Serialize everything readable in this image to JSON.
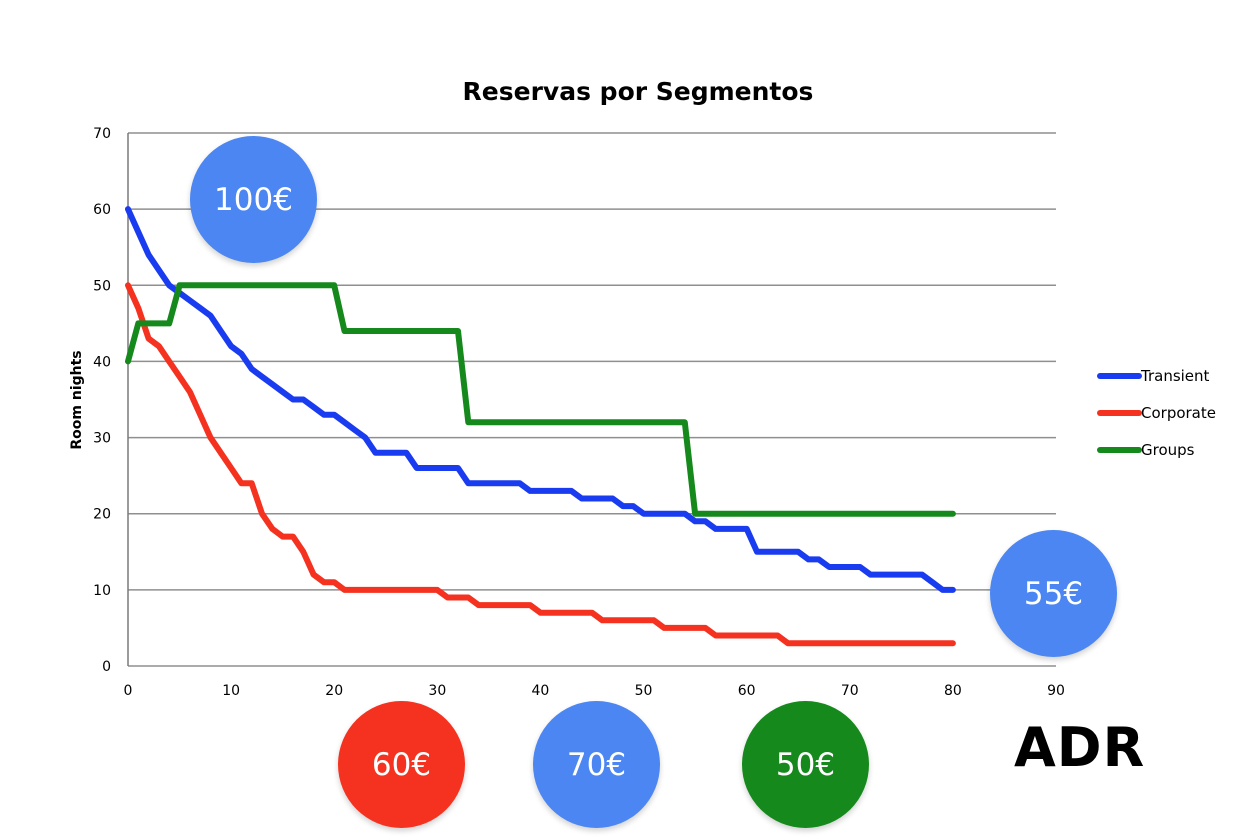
{
  "chart_data": {
    "type": "line",
    "title": "Reservas por Segmentos",
    "xlabel": "",
    "ylabel": "Room nights",
    "xlim": [
      0,
      90
    ],
    "ylim": [
      0,
      70
    ],
    "xticks": [
      0,
      10,
      20,
      30,
      40,
      50,
      60,
      70,
      80,
      90
    ],
    "yticks": [
      0,
      10,
      20,
      30,
      40,
      50,
      60,
      70
    ],
    "grid": "horizontal",
    "legend_position": "right",
    "series": [
      {
        "name": "Transient",
        "color": "#1a3cf0",
        "points": [
          [
            0,
            60
          ],
          [
            1,
            57
          ],
          [
            2,
            54
          ],
          [
            3,
            52
          ],
          [
            4,
            50
          ],
          [
            5,
            49
          ],
          [
            6,
            48
          ],
          [
            7,
            47
          ],
          [
            8,
            46
          ],
          [
            9,
            44
          ],
          [
            10,
            42
          ],
          [
            11,
            41
          ],
          [
            12,
            39
          ],
          [
            13,
            38
          ],
          [
            14,
            37
          ],
          [
            15,
            36
          ],
          [
            16,
            35
          ],
          [
            17,
            35
          ],
          [
            18,
            34
          ],
          [
            19,
            33
          ],
          [
            20,
            33
          ],
          [
            21,
            32
          ],
          [
            22,
            31
          ],
          [
            23,
            30
          ],
          [
            24,
            28
          ],
          [
            25,
            28
          ],
          [
            26,
            28
          ],
          [
            27,
            28
          ],
          [
            28,
            26
          ],
          [
            29,
            26
          ],
          [
            30,
            26
          ],
          [
            31,
            26
          ],
          [
            32,
            26
          ],
          [
            33,
            24
          ],
          [
            34,
            24
          ],
          [
            35,
            24
          ],
          [
            36,
            24
          ],
          [
            37,
            24
          ],
          [
            38,
            24
          ],
          [
            39,
            23
          ],
          [
            40,
            23
          ],
          [
            41,
            23
          ],
          [
            42,
            23
          ],
          [
            43,
            23
          ],
          [
            44,
            22
          ],
          [
            45,
            22
          ],
          [
            46,
            22
          ],
          [
            47,
            22
          ],
          [
            48,
            21
          ],
          [
            49,
            21
          ],
          [
            50,
            20
          ],
          [
            51,
            20
          ],
          [
            52,
            20
          ],
          [
            53,
            20
          ],
          [
            54,
            20
          ],
          [
            55,
            19
          ],
          [
            56,
            19
          ],
          [
            57,
            18
          ],
          [
            58,
            18
          ],
          [
            59,
            18
          ],
          [
            60,
            18
          ],
          [
            61,
            15
          ],
          [
            62,
            15
          ],
          [
            63,
            15
          ],
          [
            64,
            15
          ],
          [
            65,
            15
          ],
          [
            66,
            14
          ],
          [
            67,
            14
          ],
          [
            68,
            13
          ],
          [
            69,
            13
          ],
          [
            70,
            13
          ],
          [
            71,
            13
          ],
          [
            72,
            12
          ],
          [
            73,
            12
          ],
          [
            74,
            12
          ],
          [
            75,
            12
          ],
          [
            76,
            12
          ],
          [
            77,
            12
          ],
          [
            78,
            11
          ],
          [
            79,
            10
          ],
          [
            80,
            10
          ]
        ]
      },
      {
        "name": "Corporate",
        "color": "#f5321f",
        "points": [
          [
            0,
            50
          ],
          [
            1,
            47
          ],
          [
            2,
            43
          ],
          [
            3,
            42
          ],
          [
            4,
            40
          ],
          [
            5,
            38
          ],
          [
            6,
            36
          ],
          [
            7,
            33
          ],
          [
            8,
            30
          ],
          [
            9,
            28
          ],
          [
            10,
            26
          ],
          [
            11,
            24
          ],
          [
            12,
            24
          ],
          [
            13,
            20
          ],
          [
            14,
            18
          ],
          [
            15,
            17
          ],
          [
            16,
            17
          ],
          [
            17,
            15
          ],
          [
            18,
            12
          ],
          [
            19,
            11
          ],
          [
            20,
            11
          ],
          [
            21,
            10
          ],
          [
            22,
            10
          ],
          [
            23,
            10
          ],
          [
            24,
            10
          ],
          [
            25,
            10
          ],
          [
            26,
            10
          ],
          [
            27,
            10
          ],
          [
            28,
            10
          ],
          [
            29,
            10
          ],
          [
            30,
            10
          ],
          [
            31,
            9
          ],
          [
            32,
            9
          ],
          [
            33,
            9
          ],
          [
            34,
            8
          ],
          [
            35,
            8
          ],
          [
            36,
            8
          ],
          [
            37,
            8
          ],
          [
            38,
            8
          ],
          [
            39,
            8
          ],
          [
            40,
            7
          ],
          [
            41,
            7
          ],
          [
            42,
            7
          ],
          [
            43,
            7
          ],
          [
            44,
            7
          ],
          [
            45,
            7
          ],
          [
            46,
            6
          ],
          [
            47,
            6
          ],
          [
            48,
            6
          ],
          [
            49,
            6
          ],
          [
            50,
            6
          ],
          [
            51,
            6
          ],
          [
            52,
            5
          ],
          [
            53,
            5
          ],
          [
            54,
            5
          ],
          [
            55,
            5
          ],
          [
            56,
            5
          ],
          [
            57,
            4
          ],
          [
            58,
            4
          ],
          [
            59,
            4
          ],
          [
            60,
            4
          ],
          [
            61,
            4
          ],
          [
            62,
            4
          ],
          [
            63,
            4
          ],
          [
            64,
            3
          ],
          [
            65,
            3
          ],
          [
            66,
            3
          ],
          [
            67,
            3
          ],
          [
            68,
            3
          ],
          [
            69,
            3
          ],
          [
            70,
            3
          ],
          [
            71,
            3
          ],
          [
            72,
            3
          ],
          [
            73,
            3
          ],
          [
            74,
            3
          ],
          [
            75,
            3
          ],
          [
            76,
            3
          ],
          [
            77,
            3
          ],
          [
            78,
            3
          ],
          [
            79,
            3
          ],
          [
            80,
            3
          ]
        ]
      },
      {
        "name": "Groups",
        "color": "#16891c",
        "points": [
          [
            0,
            40
          ],
          [
            1,
            45
          ],
          [
            2,
            45
          ],
          [
            3,
            45
          ],
          [
            4,
            45
          ],
          [
            5,
            50
          ],
          [
            6,
            50
          ],
          [
            10,
            50
          ],
          [
            15,
            50
          ],
          [
            19,
            50
          ],
          [
            20,
            50
          ],
          [
            21,
            44
          ],
          [
            22,
            44
          ],
          [
            26,
            44
          ],
          [
            30,
            44
          ],
          [
            32,
            44
          ],
          [
            33,
            32
          ],
          [
            34,
            32
          ],
          [
            40,
            32
          ],
          [
            45,
            32
          ],
          [
            50,
            32
          ],
          [
            54,
            32
          ],
          [
            55,
            20
          ],
          [
            56,
            20
          ],
          [
            60,
            20
          ],
          [
            65,
            20
          ],
          [
            70,
            20
          ],
          [
            75,
            20
          ],
          [
            80,
            20
          ]
        ]
      }
    ]
  },
  "badges": [
    {
      "label": "100€",
      "color": "#4b86f2"
    },
    {
      "label": "55€",
      "color": "#4b86f2"
    },
    {
      "label": "60€",
      "color": "#f5321f"
    },
    {
      "label": "70€",
      "color": "#4b86f2"
    },
    {
      "label": "50€",
      "color": "#16891c"
    }
  ],
  "adr_label": "ADR"
}
